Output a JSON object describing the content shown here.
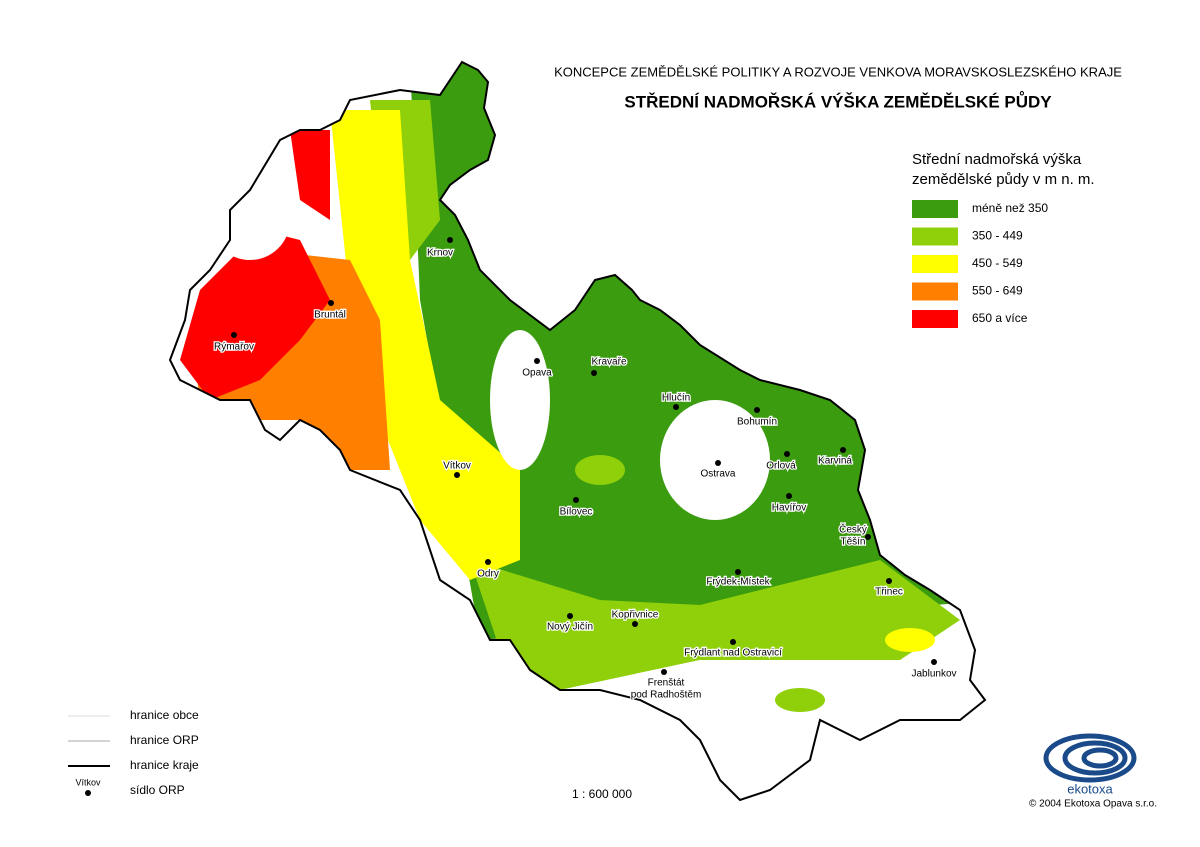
{
  "header": {
    "subtitle": "KONCEPCE ZEMĚDĚLSKÉ POLITIKY A ROZVOJE VENKOVA  MORAVSKOSLEZSKÉHO KRAJE",
    "title": "STŘEDNÍ NADMOŘSKÁ VÝŠKA ZEMĚDĚLSKÉ PŮDY"
  },
  "legend": {
    "title": [
      "Střední nadmořská výška",
      "zemědělské půdy v m n. m."
    ],
    "items": [
      {
        "label": "méně než 350",
        "color": "#3a9c0e"
      },
      {
        "label": "350 - 449",
        "color": "#8fd00a"
      },
      {
        "label": "450 - 549",
        "color": "#ffff00"
      },
      {
        "label": "550 - 649",
        "color": "#ff8000"
      },
      {
        "label": "650 a více",
        "color": "#ff0000"
      }
    ]
  },
  "towns": [
    {
      "label": [
        "Krnov"
      ]
    },
    {
      "label": [
        "Bruntál"
      ]
    },
    {
      "label": [
        "Rýmařov"
      ]
    },
    {
      "label": [
        "Opava"
      ]
    },
    {
      "label": [
        "Kravaře"
      ]
    },
    {
      "label": [
        "Hlučín"
      ]
    },
    {
      "label": [
        "Bohumín"
      ]
    },
    {
      "label": [
        "Karviná"
      ]
    },
    {
      "label": [
        "Orlová"
      ]
    },
    {
      "label": [
        "Ostrava"
      ]
    },
    {
      "label": [
        "Vítkov"
      ]
    },
    {
      "label": [
        "Havířov"
      ]
    },
    {
      "label": [
        "Bílovec"
      ]
    },
    {
      "label": [
        "Český",
        "Těšín"
      ]
    },
    {
      "label": [
        "Odry"
      ]
    },
    {
      "label": [
        "Frýdek-Místek"
      ]
    },
    {
      "label": [
        "Třinec"
      ]
    },
    {
      "label": [
        "Nový Jičín"
      ]
    },
    {
      "label": [
        "Kopřivnice"
      ]
    },
    {
      "label": [
        "Frýdlant nad Ostravicí"
      ]
    },
    {
      "label": [
        "Frenštát",
        "pod Radhoštěm"
      ]
    },
    {
      "label": [
        "Jablunkov"
      ]
    }
  ],
  "boundaries": {
    "items": [
      "hranice obce",
      "hranice ORP",
      "hranice kraje",
      "sídlo ORP"
    ],
    "sample_town": "Vítkov"
  },
  "scale": "1 : 600 000",
  "logo": "ekotoxa",
  "copyright": "© 2004 Ekotoxa Opava s.r.o."
}
